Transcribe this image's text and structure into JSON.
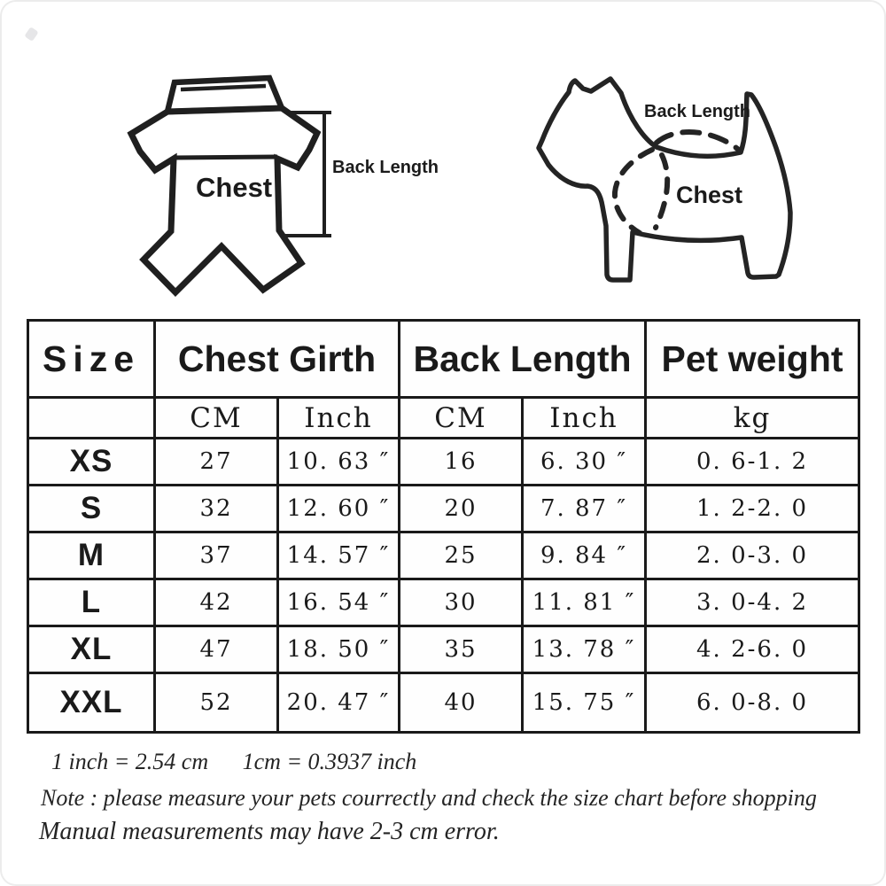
{
  "page": {
    "background": "#ffffff",
    "ink": "#1a1a1a",
    "frame_edge": "#ececec"
  },
  "garment_diagram": {
    "chest_label": "Chest",
    "back_length_label": "Back Length"
  },
  "dog_diagram": {
    "back_length_label": "Back Length",
    "chest_label": "Chest"
  },
  "size_table": {
    "column_headers": {
      "size": "Size",
      "chest_girth": "Chest Girth",
      "back_length": "Back Length",
      "pet_weight": "Pet weight"
    },
    "unit_headers": {
      "chest_cm": "CM",
      "chest_inch": "Inch",
      "back_cm": "CM",
      "back_inch": "Inch",
      "weight_kg": "kg"
    },
    "rows": [
      {
        "size": "XS",
        "chest_cm": "27",
        "chest_inch": "10. 63 ″",
        "back_cm": "16",
        "back_inch": "6. 30 ″",
        "weight": "0. 6-1. 2"
      },
      {
        "size": "S",
        "chest_cm": "32",
        "chest_inch": "12. 60 ″",
        "back_cm": "20",
        "back_inch": "7. 87 ″",
        "weight": "1. 2-2. 0"
      },
      {
        "size": "M",
        "chest_cm": "37",
        "chest_inch": "14. 57 ″",
        "back_cm": "25",
        "back_inch": "9. 84 ″",
        "weight": "2. 0-3. 0"
      },
      {
        "size": "L",
        "chest_cm": "42",
        "chest_inch": "16. 54 ″",
        "back_cm": "30",
        "back_inch": "11. 81 ″",
        "weight": "3. 0-4. 2"
      },
      {
        "size": "XL",
        "chest_cm": "47",
        "chest_inch": "18. 50 ″",
        "back_cm": "35",
        "back_inch": "13. 78 ″",
        "weight": "4. 2-6. 0"
      },
      {
        "size": "XXL",
        "chest_cm": "52",
        "chest_inch": "20. 47 ″",
        "back_cm": "40",
        "back_inch": "15. 75 ″",
        "weight": "6. 0-8. 0"
      }
    ]
  },
  "notes": {
    "conversion_inch_to_cm": "1 inch = 2.54 cm",
    "conversion_cm_to_inch": "1cm = 0.3937 inch",
    "measure_note": "Note : please measure your pets courrectly and check the size chart before shopping",
    "error_note": "Manual measurements may have 2-3 cm error."
  }
}
